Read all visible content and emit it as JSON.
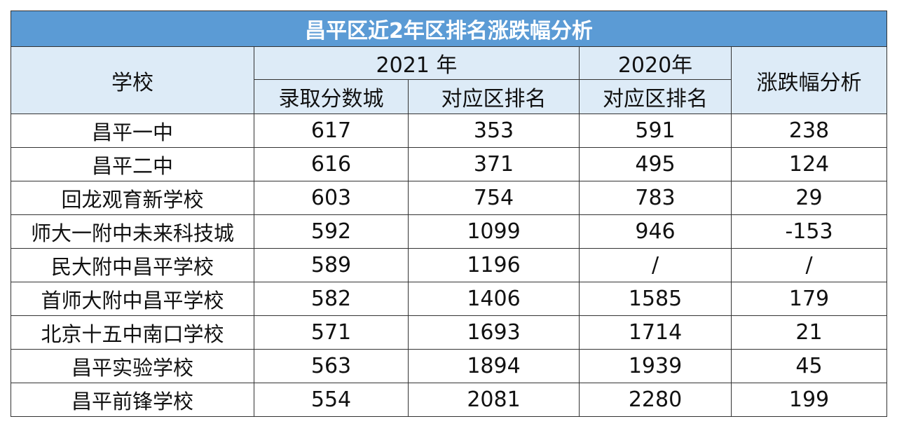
{
  "title": "昌平区近2年区排名涨跌幅分析",
  "headers": {
    "school": "学校",
    "year_2021": "2021 年",
    "year_2020": "2020年",
    "change": "涨跌幅分析",
    "score_line": "录取分数城",
    "rank_2021": "对应区排名",
    "rank_2020": "对应区排名"
  },
  "rows": [
    {
      "school": "昌平一中",
      "score": "617",
      "rank2021": "353",
      "rank2020": "591",
      "change": "238"
    },
    {
      "school": "昌平二中",
      "score": "616",
      "rank2021": "371",
      "rank2020": "495",
      "change": "124"
    },
    {
      "school": "回龙观育新学校",
      "score": "603",
      "rank2021": "754",
      "rank2020": "783",
      "change": "29"
    },
    {
      "school": "师大一附中未来科技城",
      "score": "592",
      "rank2021": "1099",
      "rank2020": "946",
      "change": "-153"
    },
    {
      "school": "民大附中昌平学校",
      "score": "589",
      "rank2021": "1196",
      "rank2020": "/",
      "change": "/"
    },
    {
      "school": "首师大附中昌平学校",
      "score": "582",
      "rank2021": "1406",
      "rank2020": "1585",
      "change": "179"
    },
    {
      "school": "北京十五中南口学校",
      "score": "571",
      "rank2021": "1693",
      "rank2020": "1714",
      "change": "21"
    },
    {
      "school": "昌平实验学校",
      "score": "563",
      "rank2021": "1894",
      "rank2020": "1939",
      "change": "45"
    },
    {
      "school": "昌平前锋学校",
      "score": "554",
      "rank2021": "2081",
      "rank2020": "2280",
      "change": "199"
    }
  ]
}
